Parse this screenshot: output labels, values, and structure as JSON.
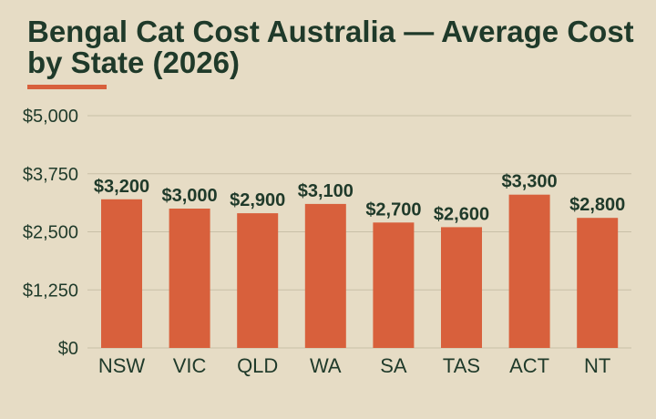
{
  "page": {
    "background": "#e6dcc5"
  },
  "chart_data": {
    "type": "bar",
    "title": "Bengal Cat Cost Australia — Average Cost by State (2026)",
    "xlabel": "",
    "ylabel": "",
    "categories": [
      "NSW",
      "VIC",
      "QLD",
      "WA",
      "SA",
      "TAS",
      "ACT",
      "NT"
    ],
    "values": [
      3200,
      3000,
      2900,
      3100,
      2700,
      2600,
      3300,
      2800
    ],
    "value_labels": [
      "$3,200",
      "$3,000",
      "$2,900",
      "$3,100",
      "$2,700",
      "$2,600",
      "$3,300",
      "$2,800"
    ],
    "ylim": [
      0,
      5000
    ],
    "yticks": [
      0,
      1250,
      2500,
      3750,
      5000
    ],
    "ytick_labels": [
      "$0",
      "$1,250",
      "$2,500",
      "$3,750",
      "$5,000"
    ],
    "grid": true,
    "legend": "none",
    "colors": {
      "bar": "#d8603c",
      "title": "#1f3a2a",
      "text": "#1f3a2a",
      "grid": "#c8bfa7",
      "accent_underline": "#d8603c"
    }
  }
}
